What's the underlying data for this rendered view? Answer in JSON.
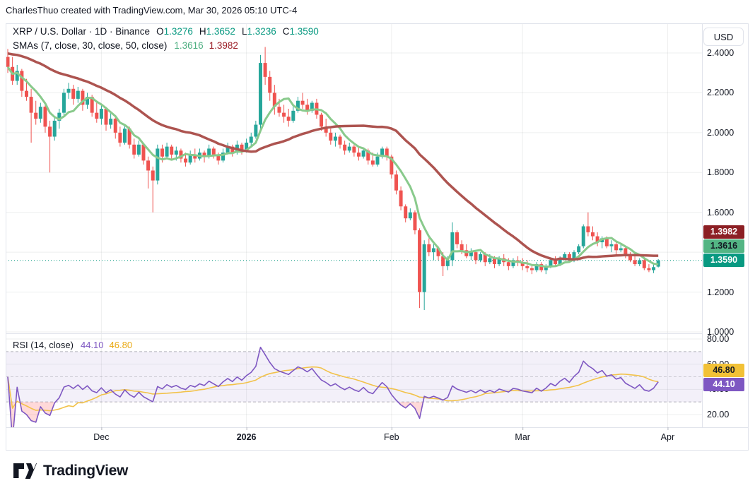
{
  "header": {
    "attribution": "CharlesThuo created with TradingView.com, Mar 30, 2026 05:10 UTC-4"
  },
  "chart": {
    "legend": {
      "title": "XRP / U.S. Dollar · 1D · Binance",
      "ohlc": [
        {
          "label": "O",
          "value": "1.3276"
        },
        {
          "label": "H",
          "value": "1.3652"
        },
        {
          "label": "L",
          "value": "1.3236"
        },
        {
          "label": "C",
          "value": "1.3590"
        }
      ],
      "ohlc_color": "#089981",
      "sma_label": "SMAs (7, close, 30, close, 50, close)",
      "sma_values": [
        {
          "value": "1.3616",
          "color": "#4cae80"
        },
        {
          "value": "1.3982",
          "color": "#9c1f28"
        }
      ]
    },
    "rsi_legend": {
      "title": "RSI (14, close)",
      "values": [
        {
          "value": "44.10",
          "color": "#7e57c2"
        },
        {
          "value": "46.80",
          "color": "#e9a913"
        }
      ]
    }
  },
  "price_axis": {
    "currency": "USD",
    "ticks": [
      "2.4000",
      "2.2000",
      "2.0000",
      "1.8000",
      "1.6000",
      "1.2000",
      "1.0000"
    ],
    "badges": [
      {
        "value": "1.3982",
        "bg": "#8c1f24",
        "fg": "#ffffff"
      },
      {
        "value": "1.3616",
        "bg": "#53b584",
        "fg": "#131722"
      },
      {
        "value": "1.3590",
        "bg": "#089981",
        "fg": "#ffffff"
      }
    ]
  },
  "rsi_axis": {
    "ticks": [
      "80.00",
      "60.00",
      "40.00",
      "20.00"
    ],
    "badges": [
      {
        "value": "46.80",
        "bg": "#f2c136",
        "fg": "#131722"
      },
      {
        "value": "44.10",
        "bg": "#7e57c2",
        "fg": "#ffffff"
      }
    ]
  },
  "time_axis": {
    "labels": [
      {
        "label": "Dec",
        "index": 20,
        "bold": false
      },
      {
        "label": "2026",
        "index": 51,
        "bold": true
      },
      {
        "label": "Feb",
        "index": 82,
        "bold": false
      },
      {
        "label": "Mar",
        "index": 110,
        "bold": false
      },
      {
        "label": "Apr",
        "index": 141,
        "bold": false
      }
    ]
  },
  "footer": {
    "brand": "TradingView"
  },
  "chart_data": {
    "type": "candlestick",
    "title": "XRP / U.S. Dollar, 1D, Binance",
    "symbol": "XRP/USD",
    "interval": "1D",
    "exchange": "Binance",
    "start_date": "2025-11-11",
    "end_date": "2026-03-30",
    "ylim": [
      1.0,
      2.55
    ],
    "last_close_line": 1.359,
    "colors": {
      "up": "#26a69a",
      "down": "#ef5350",
      "grid": "rgba(42,46,57,0.08)",
      "divider": "#e0e3eb",
      "dotted_last": "#089981"
    },
    "indicators": {
      "sma_short": {
        "period": 7,
        "color": "#89ca8c",
        "last": 1.3616
      },
      "sma_long": {
        "period": 30,
        "color": "#ad5450",
        "seed": 2.4,
        "last": 1.3982
      },
      "rsi": {
        "period": 14,
        "color": "#7e57c2",
        "last": 44.1,
        "upper_band": 70,
        "middle_band": 50,
        "lower_band": 30,
        "band_fill": "rgba(126,87,194,0.09)",
        "oversold_fill": "rgba(255,82,82,0.22)",
        "ylim": [
          10,
          84
        ]
      },
      "rsi_ma": {
        "period": 14,
        "color": "#f2c249",
        "last": 46.8
      }
    },
    "candles": [
      [
        2.38,
        2.42,
        2.3,
        2.33
      ],
      [
        2.33,
        2.38,
        2.24,
        2.26
      ],
      [
        2.26,
        2.34,
        2.24,
        2.31
      ],
      [
        2.31,
        2.32,
        2.18,
        2.21
      ],
      [
        2.21,
        2.27,
        2.16,
        2.18
      ],
      [
        2.18,
        2.22,
        1.95,
        2.1
      ],
      [
        2.1,
        2.16,
        2.04,
        2.07
      ],
      [
        2.07,
        2.15,
        2.05,
        2.13
      ],
      [
        2.13,
        2.14,
        2.0,
        2.03
      ],
      [
        2.03,
        2.06,
        1.8,
        1.98
      ],
      [
        1.98,
        2.08,
        1.96,
        2.06
      ],
      [
        2.06,
        2.12,
        2.02,
        2.1
      ],
      [
        2.1,
        2.22,
        2.08,
        2.2
      ],
      [
        2.2,
        2.25,
        2.17,
        2.22
      ],
      [
        2.22,
        2.24,
        2.14,
        2.17
      ],
      [
        2.17,
        2.23,
        2.15,
        2.21
      ],
      [
        2.21,
        2.22,
        2.11,
        2.14
      ],
      [
        2.14,
        2.2,
        2.12,
        2.18
      ],
      [
        2.18,
        2.19,
        2.08,
        2.1
      ],
      [
        2.1,
        2.15,
        2.05,
        2.07
      ],
      [
        2.07,
        2.14,
        2.04,
        2.12
      ],
      [
        2.12,
        2.13,
        2.01,
        2.04
      ],
      [
        2.04,
        2.1,
        2.02,
        2.07
      ],
      [
        2.07,
        2.08,
        1.97,
        2.0
      ],
      [
        2.0,
        2.03,
        1.93,
        1.95
      ],
      [
        1.95,
        2.04,
        1.94,
        2.02
      ],
      [
        2.02,
        2.03,
        1.92,
        1.94
      ],
      [
        1.94,
        1.97,
        1.87,
        1.89
      ],
      [
        1.89,
        1.96,
        1.88,
        1.94
      ],
      [
        1.94,
        1.95,
        1.84,
        1.86
      ],
      [
        1.86,
        1.88,
        1.72,
        1.81
      ],
      [
        1.81,
        1.83,
        1.6,
        1.76
      ],
      [
        1.76,
        1.94,
        1.74,
        1.92
      ],
      [
        1.92,
        1.94,
        1.85,
        1.88
      ],
      [
        1.88,
        1.95,
        1.87,
        1.93
      ],
      [
        1.93,
        1.94,
        1.87,
        1.89
      ],
      [
        1.89,
        1.93,
        1.86,
        1.91
      ],
      [
        1.91,
        1.92,
        1.85,
        1.87
      ],
      [
        1.87,
        1.9,
        1.83,
        1.85
      ],
      [
        1.85,
        1.91,
        1.84,
        1.89
      ],
      [
        1.89,
        1.92,
        1.85,
        1.87
      ],
      [
        1.87,
        1.92,
        1.86,
        1.9
      ],
      [
        1.9,
        1.91,
        1.85,
        1.88
      ],
      [
        1.88,
        1.94,
        1.87,
        1.92
      ],
      [
        1.92,
        1.93,
        1.87,
        1.89
      ],
      [
        1.89,
        1.9,
        1.84,
        1.86
      ],
      [
        1.86,
        1.92,
        1.85,
        1.9
      ],
      [
        1.9,
        1.95,
        1.89,
        1.93
      ],
      [
        1.93,
        1.94,
        1.88,
        1.9
      ],
      [
        1.9,
        1.96,
        1.89,
        1.94
      ],
      [
        1.94,
        1.95,
        1.89,
        1.91
      ],
      [
        1.91,
        1.97,
        1.9,
        1.95
      ],
      [
        1.95,
        2.0,
        1.93,
        1.98
      ],
      [
        1.98,
        2.06,
        1.97,
        2.04
      ],
      [
        2.04,
        2.39,
        2.02,
        2.35
      ],
      [
        2.35,
        2.43,
        2.24,
        2.28
      ],
      [
        2.28,
        2.31,
        2.16,
        2.2
      ],
      [
        2.2,
        2.24,
        2.09,
        2.13
      ],
      [
        2.13,
        2.17,
        2.08,
        2.1
      ],
      [
        2.1,
        2.14,
        2.05,
        2.08
      ],
      [
        2.08,
        2.12,
        2.03,
        2.06
      ],
      [
        2.06,
        2.13,
        2.05,
        2.11
      ],
      [
        2.11,
        2.18,
        2.1,
        2.16
      ],
      [
        2.16,
        2.2,
        2.12,
        2.14
      ],
      [
        2.14,
        2.17,
        2.09,
        2.11
      ],
      [
        2.11,
        2.16,
        2.1,
        2.15
      ],
      [
        2.15,
        2.17,
        2.07,
        2.09
      ],
      [
        2.09,
        2.1,
        2.01,
        2.03
      ],
      [
        2.03,
        2.07,
        1.98,
        2.0
      ],
      [
        2.0,
        2.02,
        1.94,
        1.96
      ],
      [
        1.96,
        2.0,
        1.93,
        1.98
      ],
      [
        1.98,
        1.99,
        1.92,
        1.94
      ],
      [
        1.94,
        1.96,
        1.89,
        1.91
      ],
      [
        1.91,
        1.95,
        1.9,
        1.93
      ],
      [
        1.93,
        1.94,
        1.88,
        1.9
      ],
      [
        1.9,
        1.93,
        1.86,
        1.88
      ],
      [
        1.88,
        1.92,
        1.87,
        1.91
      ],
      [
        1.91,
        1.92,
        1.84,
        1.86
      ],
      [
        1.86,
        1.9,
        1.83,
        1.84
      ],
      [
        1.84,
        1.9,
        1.83,
        1.88
      ],
      [
        1.88,
        1.93,
        1.87,
        1.92
      ],
      [
        1.92,
        1.93,
        1.86,
        1.88
      ],
      [
        1.88,
        1.89,
        1.77,
        1.79
      ],
      [
        1.79,
        1.81,
        1.69,
        1.71
      ],
      [
        1.71,
        1.73,
        1.61,
        1.63
      ],
      [
        1.63,
        1.64,
        1.55,
        1.57
      ],
      [
        1.57,
        1.62,
        1.56,
        1.6
      ],
      [
        1.6,
        1.61,
        1.49,
        1.51
      ],
      [
        1.51,
        1.52,
        1.12,
        1.2
      ],
      [
        1.2,
        1.46,
        1.11,
        1.44
      ],
      [
        1.44,
        1.47,
        1.38,
        1.4
      ],
      [
        1.4,
        1.44,
        1.36,
        1.42
      ],
      [
        1.42,
        1.43,
        1.36,
        1.38
      ],
      [
        1.38,
        1.4,
        1.28,
        1.33
      ],
      [
        1.33,
        1.38,
        1.31,
        1.36
      ],
      [
        1.36,
        1.55,
        1.33,
        1.5
      ],
      [
        1.5,
        1.51,
        1.42,
        1.44
      ],
      [
        1.44,
        1.46,
        1.39,
        1.41
      ],
      [
        1.41,
        1.44,
        1.37,
        1.38
      ],
      [
        1.38,
        1.42,
        1.36,
        1.4
      ],
      [
        1.4,
        1.41,
        1.34,
        1.36
      ],
      [
        1.36,
        1.4,
        1.35,
        1.39
      ],
      [
        1.39,
        1.4,
        1.33,
        1.35
      ],
      [
        1.35,
        1.39,
        1.34,
        1.37
      ],
      [
        1.37,
        1.38,
        1.32,
        1.34
      ],
      [
        1.34,
        1.38,
        1.33,
        1.37
      ],
      [
        1.37,
        1.39,
        1.33,
        1.35
      ],
      [
        1.35,
        1.37,
        1.31,
        1.33
      ],
      [
        1.33,
        1.37,
        1.32,
        1.36
      ],
      [
        1.36,
        1.38,
        1.33,
        1.35
      ],
      [
        1.35,
        1.37,
        1.31,
        1.33
      ],
      [
        1.33,
        1.36,
        1.3,
        1.32
      ],
      [
        1.32,
        1.34,
        1.29,
        1.31
      ],
      [
        1.31,
        1.35,
        1.3,
        1.34
      ],
      [
        1.34,
        1.35,
        1.3,
        1.31
      ],
      [
        1.31,
        1.34,
        1.29,
        1.33
      ],
      [
        1.33,
        1.37,
        1.32,
        1.36
      ],
      [
        1.36,
        1.38,
        1.33,
        1.34
      ],
      [
        1.34,
        1.38,
        1.33,
        1.37
      ],
      [
        1.37,
        1.4,
        1.36,
        1.39
      ],
      [
        1.39,
        1.4,
        1.35,
        1.36
      ],
      [
        1.36,
        1.41,
        1.35,
        1.4
      ],
      [
        1.4,
        1.44,
        1.39,
        1.43
      ],
      [
        1.43,
        1.54,
        1.42,
        1.53
      ],
      [
        1.53,
        1.6,
        1.48,
        1.5
      ],
      [
        1.5,
        1.53,
        1.46,
        1.48
      ],
      [
        1.48,
        1.5,
        1.43,
        1.45
      ],
      [
        1.45,
        1.48,
        1.42,
        1.47
      ],
      [
        1.47,
        1.48,
        1.42,
        1.43
      ],
      [
        1.43,
        1.46,
        1.4,
        1.44
      ],
      [
        1.44,
        1.45,
        1.39,
        1.41
      ],
      [
        1.41,
        1.44,
        1.4,
        1.42
      ],
      [
        1.42,
        1.43,
        1.37,
        1.38
      ],
      [
        1.38,
        1.4,
        1.35,
        1.36
      ],
      [
        1.36,
        1.38,
        1.33,
        1.34
      ],
      [
        1.34,
        1.37,
        1.33,
        1.36
      ],
      [
        1.36,
        1.37,
        1.31,
        1.32
      ],
      [
        1.32,
        1.34,
        1.3,
        1.31
      ],
      [
        1.31,
        1.34,
        1.295,
        1.325
      ],
      [
        1.3276,
        1.3652,
        1.3236,
        1.359
      ]
    ]
  }
}
